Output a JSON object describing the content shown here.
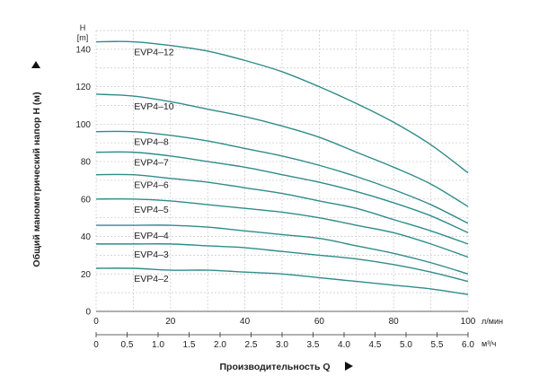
{
  "chart_data": {
    "type": "line",
    "ylabel_unit_top": "H",
    "ylabel_unit_bottom": "[m]",
    "ylabel": "Общий манометрический напор H (м)",
    "x_unit": "л/мин",
    "x2_unit": "м³/ч",
    "xlabel": "Производительность Q",
    "ylim": [
      0,
      150
    ],
    "xlim": [
      0,
      100
    ],
    "x2lim": [
      0,
      6.0
    ],
    "y_ticks": [
      "0",
      "20",
      "40",
      "60",
      "80",
      "100",
      "120",
      "140"
    ],
    "x_ticks": [
      "0",
      "20",
      "40",
      "60",
      "80",
      "100"
    ],
    "x2_ticks": [
      "0",
      "0.5",
      "1.0",
      "1.5",
      "2.0",
      "2.5",
      "3.0",
      "3.5",
      "4.0",
      "4.5",
      "5.0",
      "5.5",
      "6.0"
    ],
    "grid": true,
    "x": [
      0,
      10,
      20,
      30,
      40,
      50,
      60,
      70,
      80,
      90,
      100
    ],
    "series": [
      {
        "name": "EVP4–12",
        "values": [
          144,
          144,
          142,
          139,
          134,
          128,
          120,
          111,
          101,
          89,
          74
        ]
      },
      {
        "name": "EVP4–10",
        "values": [
          116,
          115,
          112,
          108,
          104,
          99,
          93,
          85,
          77,
          68,
          56
        ]
      },
      {
        "name": "EVP4–8",
        "values": [
          96,
          96,
          94,
          91,
          87,
          83,
          78,
          72,
          65,
          57,
          47
        ]
      },
      {
        "name": "EVP4–7",
        "values": [
          85,
          85,
          83,
          80,
          77,
          73,
          69,
          64,
          58,
          51,
          42
        ]
      },
      {
        "name": "EVP4–6",
        "values": [
          73,
          73,
          71,
          69,
          66,
          63,
          59,
          55,
          49,
          43,
          36
        ]
      },
      {
        "name": "EVP4–5",
        "values": [
          60,
          60,
          59,
          57,
          55,
          53,
          50,
          46,
          42,
          36,
          29
        ]
      },
      {
        "name": "EVP4–4",
        "values": [
          46,
          46,
          46,
          45,
          43,
          41,
          39,
          35,
          31,
          26,
          20
        ]
      },
      {
        "name": "EVP4–3",
        "values": [
          36,
          36,
          36,
          35,
          34,
          32,
          30,
          28,
          25,
          21,
          16
        ]
      },
      {
        "name": "EVP4–2",
        "values": [
          23,
          23,
          22,
          22,
          21,
          20,
          18,
          16,
          14,
          12,
          9
        ]
      }
    ]
  }
}
